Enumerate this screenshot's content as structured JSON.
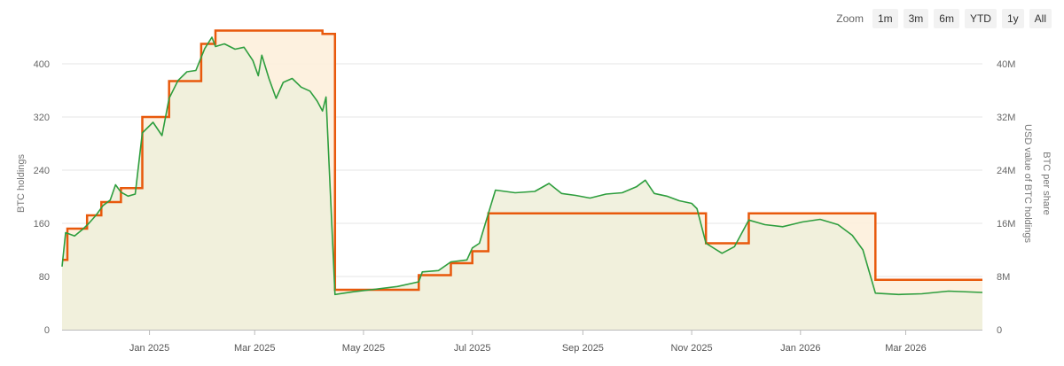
{
  "zoom": {
    "label": "Zoom",
    "buttons": [
      "1m",
      "3m",
      "6m",
      "YTD",
      "1y",
      "All"
    ]
  },
  "chart_data": {
    "type": "area",
    "xlabel": "",
    "ylabel_left": "BTC holdings",
    "ylabel_right_1": "USD value of BTC holdings",
    "ylabel_right_2": "BTC per share",
    "x_range": [
      "2024-11-13",
      "2026-04-13"
    ],
    "x_ticks": [
      {
        "date": "2025-01-01",
        "label": "Jan 2025"
      },
      {
        "date": "2025-03-01",
        "label": "Mar 2025"
      },
      {
        "date": "2025-05-01",
        "label": "May 2025"
      },
      {
        "date": "2025-07-01",
        "label": "Jul 2025"
      },
      {
        "date": "2025-09-01",
        "label": "Sep 2025"
      },
      {
        "date": "2025-11-01",
        "label": "Nov 2025"
      },
      {
        "date": "2026-01-01",
        "label": "Jan 2026"
      },
      {
        "date": "2026-03-01",
        "label": "Mar 2026"
      }
    ],
    "ylim_left": [
      0,
      440
    ],
    "yticks_left": [
      0,
      80,
      160,
      240,
      320,
      400
    ],
    "ylim_right": [
      0,
      44000000
    ],
    "yticks_right": [
      {
        "value": 0,
        "label": "0"
      },
      {
        "value": 8000000,
        "label": "8M"
      },
      {
        "value": 16000000,
        "label": "16M"
      },
      {
        "value": 24000000,
        "label": "24M"
      },
      {
        "value": 32000000,
        "label": "32M"
      },
      {
        "value": 40000000,
        "label": "40M"
      }
    ],
    "grid": true,
    "series": [
      {
        "name": "BTC holdings",
        "axis": "left",
        "color": "#e8590c",
        "fill": "#fdf0dc",
        "step": true,
        "points": [
          [
            "2024-11-13",
            105
          ],
          [
            "2024-11-16",
            152
          ],
          [
            "2024-11-27",
            172
          ],
          [
            "2024-12-05",
            192
          ],
          [
            "2024-12-16",
            213
          ],
          [
            "2024-12-28",
            320
          ],
          [
            "2025-01-12",
            374
          ],
          [
            "2025-01-30",
            430
          ],
          [
            "2025-02-07",
            450
          ],
          [
            "2025-04-08",
            445
          ],
          [
            "2025-04-15",
            60
          ],
          [
            "2025-06-01",
            82
          ],
          [
            "2025-06-19",
            100
          ],
          [
            "2025-07-01",
            118
          ],
          [
            "2025-07-10",
            175
          ],
          [
            "2025-11-09",
            130
          ],
          [
            "2025-12-03",
            175
          ],
          [
            "2026-02-12",
            75
          ],
          [
            "2026-04-13",
            75
          ]
        ]
      },
      {
        "name": "USD value of BTC holdings",
        "axis": "right",
        "color": "#2e9e3e",
        "fill": "#f0efdc",
        "step": false,
        "points": [
          [
            "2024-11-13",
            9500000
          ],
          [
            "2024-11-15",
            14600000
          ],
          [
            "2024-11-20",
            14100000
          ],
          [
            "2024-11-25",
            15200000
          ],
          [
            "2024-11-28",
            16000000
          ],
          [
            "2024-12-02",
            17200000
          ],
          [
            "2024-12-06",
            18700000
          ],
          [
            "2024-12-10",
            19500000
          ],
          [
            "2024-12-13",
            21800000
          ],
          [
            "2024-12-16",
            20700000
          ],
          [
            "2024-12-20",
            20100000
          ],
          [
            "2024-12-24",
            20400000
          ],
          [
            "2024-12-28",
            29600000
          ],
          [
            "2025-01-03",
            31200000
          ],
          [
            "2025-01-08",
            29200000
          ],
          [
            "2025-01-12",
            34800000
          ],
          [
            "2025-01-17",
            37500000
          ],
          [
            "2025-01-22",
            38800000
          ],
          [
            "2025-01-27",
            39000000
          ],
          [
            "2025-02-01",
            42300000
          ],
          [
            "2025-02-05",
            44000000
          ],
          [
            "2025-02-07",
            42600000
          ],
          [
            "2025-02-12",
            43000000
          ],
          [
            "2025-02-18",
            42200000
          ],
          [
            "2025-02-23",
            42500000
          ],
          [
            "2025-02-28",
            40500000
          ],
          [
            "2025-03-03",
            38200000
          ],
          [
            "2025-03-05",
            41300000
          ],
          [
            "2025-03-09",
            37800000
          ],
          [
            "2025-03-13",
            34800000
          ],
          [
            "2025-03-17",
            37200000
          ],
          [
            "2025-03-22",
            37800000
          ],
          [
            "2025-03-27",
            36500000
          ],
          [
            "2025-04-01",
            35900000
          ],
          [
            "2025-04-05",
            34400000
          ],
          [
            "2025-04-08",
            32900000
          ],
          [
            "2025-04-10",
            35000000
          ],
          [
            "2025-04-15",
            5300000
          ],
          [
            "2025-04-25",
            5700000
          ],
          [
            "2025-05-05",
            6000000
          ],
          [
            "2025-05-20",
            6500000
          ],
          [
            "2025-06-01",
            7200000
          ],
          [
            "2025-06-03",
            8700000
          ],
          [
            "2025-06-12",
            8900000
          ],
          [
            "2025-06-19",
            10200000
          ],
          [
            "2025-06-28",
            10500000
          ],
          [
            "2025-07-01",
            12300000
          ],
          [
            "2025-07-05",
            13000000
          ],
          [
            "2025-07-10",
            17500000
          ],
          [
            "2025-07-14",
            21000000
          ],
          [
            "2025-07-25",
            20600000
          ],
          [
            "2025-08-05",
            20800000
          ],
          [
            "2025-08-13",
            22000000
          ],
          [
            "2025-08-20",
            20500000
          ],
          [
            "2025-08-28",
            20200000
          ],
          [
            "2025-09-05",
            19800000
          ],
          [
            "2025-09-14",
            20400000
          ],
          [
            "2025-09-23",
            20600000
          ],
          [
            "2025-10-01",
            21500000
          ],
          [
            "2025-10-06",
            22500000
          ],
          [
            "2025-10-11",
            20500000
          ],
          [
            "2025-10-18",
            20100000
          ],
          [
            "2025-10-25",
            19400000
          ],
          [
            "2025-11-01",
            19000000
          ],
          [
            "2025-11-04",
            18200000
          ],
          [
            "2025-11-09",
            13000000
          ],
          [
            "2025-11-18",
            11500000
          ],
          [
            "2025-11-25",
            12500000
          ],
          [
            "2025-12-03",
            16500000
          ],
          [
            "2025-12-12",
            15800000
          ],
          [
            "2025-12-22",
            15500000
          ],
          [
            "2026-01-02",
            16200000
          ],
          [
            "2026-01-12",
            16600000
          ],
          [
            "2026-01-22",
            15800000
          ],
          [
            "2026-01-30",
            14200000
          ],
          [
            "2026-02-05",
            12000000
          ],
          [
            "2026-02-12",
            5500000
          ],
          [
            "2026-02-25",
            5300000
          ],
          [
            "2026-03-10",
            5400000
          ],
          [
            "2026-03-25",
            5800000
          ],
          [
            "2026-04-13",
            5600000
          ]
        ]
      }
    ]
  }
}
